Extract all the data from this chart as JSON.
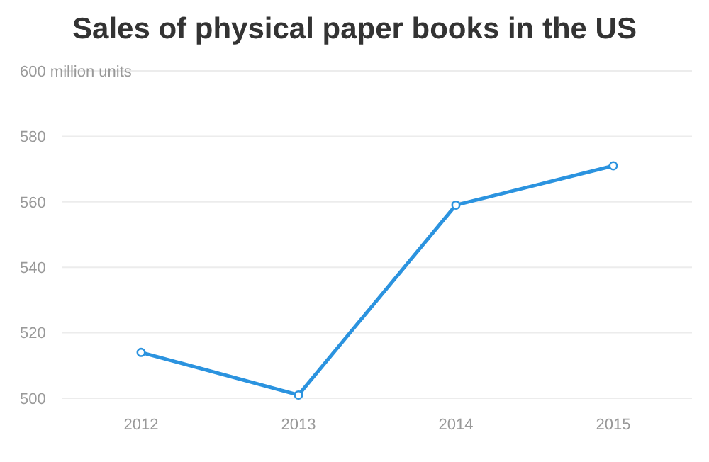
{
  "chart_data": {
    "type": "line",
    "title": "Sales of physical paper books in the US",
    "categories": [
      "2012",
      "2013",
      "2014",
      "2015"
    ],
    "series": [
      {
        "color": "#2b93df",
        "values": [
          514,
          501,
          559,
          571
        ]
      }
    ],
    "ylim": [
      500,
      600
    ],
    "yticks": [
      500,
      520,
      540,
      560,
      580,
      {
        "value": 600,
        "label": "600 million units"
      }
    ],
    "grid": "y",
    "marker": "circle",
    "line_style": "solid"
  }
}
